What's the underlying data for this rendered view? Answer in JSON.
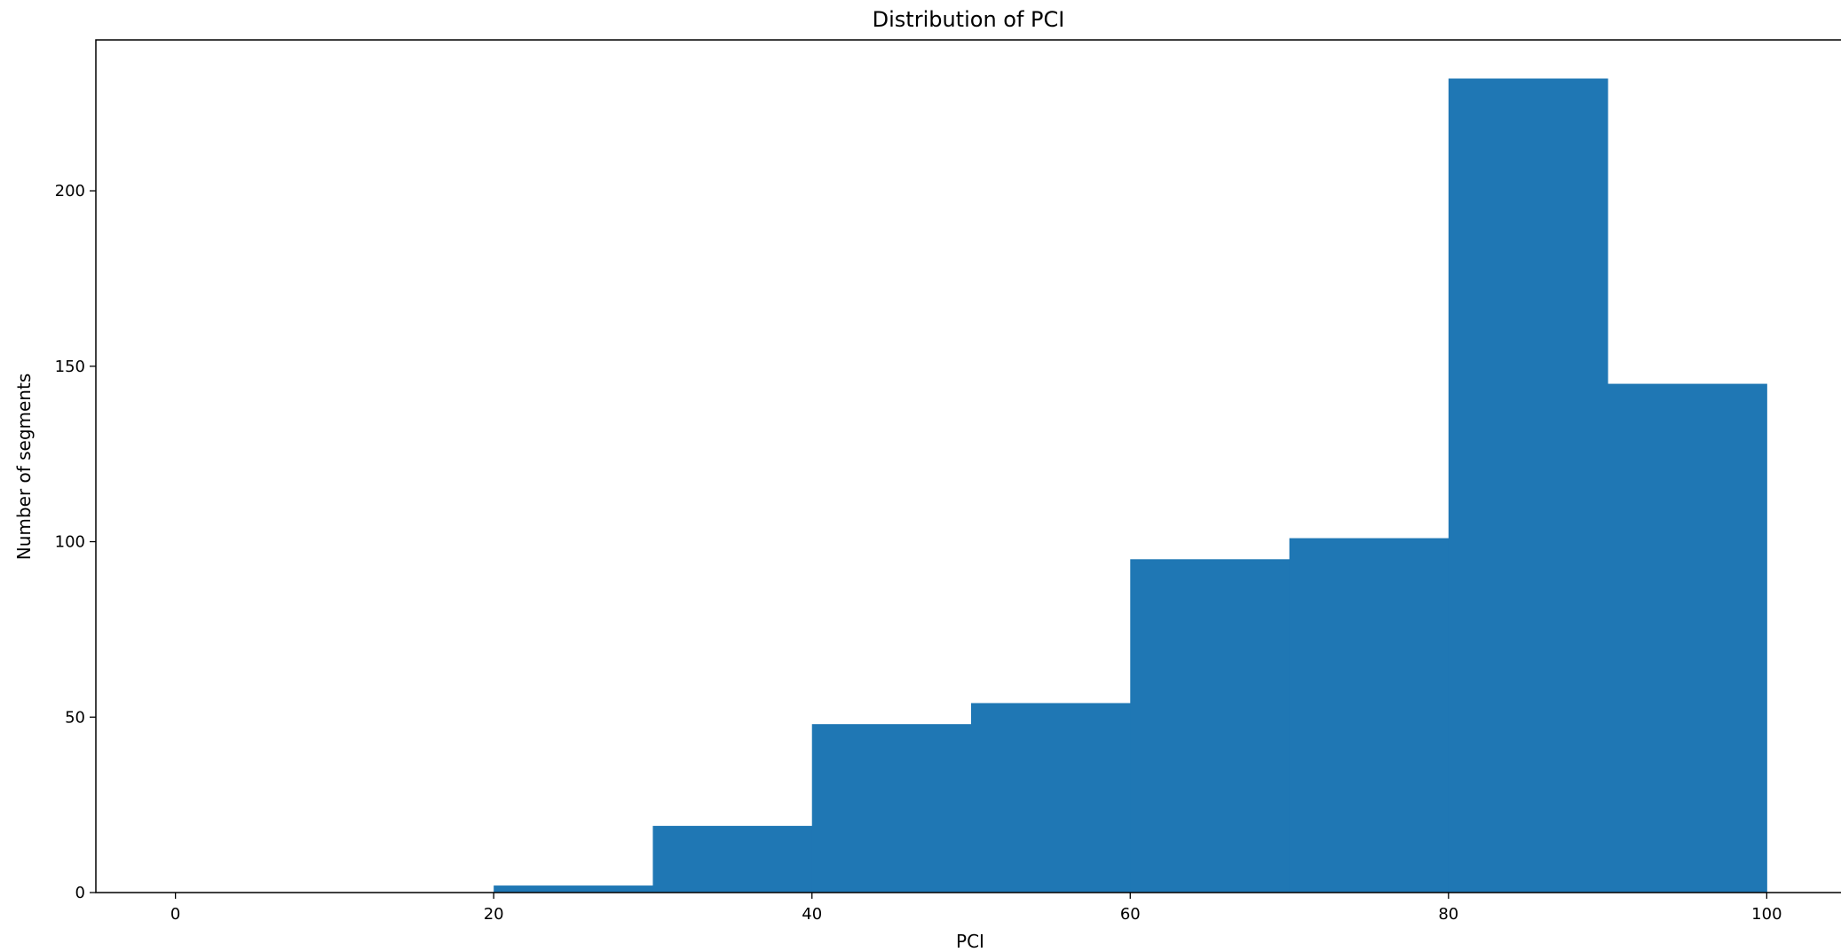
{
  "chart_data": {
    "type": "bar",
    "title": "Distribution of PCI",
    "xlabel": "PCI",
    "ylabel": "Number of segments",
    "bin_edges": [
      20,
      30,
      40,
      50,
      60,
      70,
      80,
      90,
      100
    ],
    "values": [
      2,
      19,
      48,
      54,
      95,
      101,
      232,
      145
    ],
    "xlim": [
      -5,
      105
    ],
    "ylim": [
      0,
      243
    ],
    "xticks": [
      0,
      20,
      40,
      60,
      80,
      100
    ],
    "yticks": [
      0,
      50,
      100,
      150,
      200
    ],
    "grid": false,
    "bar_color": "#1f77b4"
  }
}
